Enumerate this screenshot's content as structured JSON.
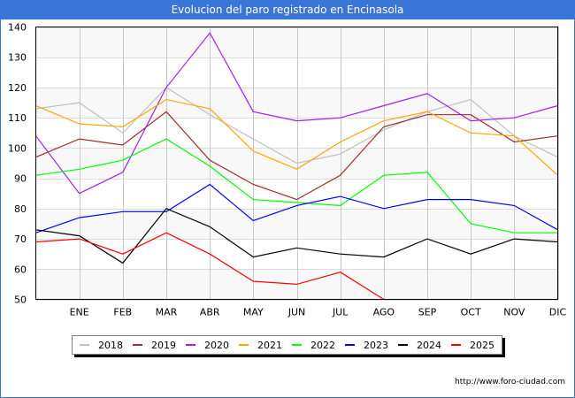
{
  "title": "Evolucion del paro registrado en Encinasola",
  "url": "http://www.foro-ciudad.com",
  "chart_data": {
    "type": "line",
    "title": "Evolucion del paro registrado en Encinasola",
    "xlabel": "",
    "ylabel": "",
    "categories": [
      "",
      "ENE",
      "FEB",
      "MAR",
      "ABR",
      "MAY",
      "JUN",
      "JUL",
      "AGO",
      "SEP",
      "OCT",
      "NOV",
      "DIC"
    ],
    "ylim": [
      50,
      140
    ],
    "yticks": [
      50,
      60,
      70,
      80,
      90,
      100,
      110,
      120,
      130,
      140
    ],
    "grid": true,
    "legend_position": "bottom",
    "series": [
      {
        "name": "2018",
        "color": "#c0c0c0",
        "values": [
          113,
          115,
          105,
          120,
          111,
          103,
          95,
          98,
          106,
          112,
          116,
          104,
          97
        ]
      },
      {
        "name": "2019",
        "color": "#a52a2a",
        "values": [
          97,
          103,
          101,
          112,
          96,
          88,
          83,
          91,
          107,
          111,
          111,
          102,
          104
        ]
      },
      {
        "name": "2020",
        "color": "#a020f0",
        "values": [
          104,
          85,
          92,
          120,
          138,
          112,
          109,
          110,
          114,
          118,
          109,
          110,
          114
        ]
      },
      {
        "name": "2021",
        "color": "#ffa500",
        "values": [
          114,
          108,
          107,
          116,
          113,
          99,
          93,
          102,
          109,
          112,
          105,
          104,
          91
        ]
      },
      {
        "name": "2022",
        "color": "#00ff00",
        "values": [
          91,
          93,
          96,
          103,
          94,
          83,
          82,
          81,
          91,
          92,
          75,
          72,
          72
        ]
      },
      {
        "name": "2023",
        "color": "#0000ff",
        "values": [
          72,
          77,
          79,
          79,
          88,
          76,
          81,
          84,
          80,
          83,
          83,
          81,
          73
        ]
      },
      {
        "name": "2024",
        "color": "#000000",
        "values": [
          73,
          71,
          62,
          80,
          74,
          64,
          67,
          65,
          64,
          70,
          65,
          70,
          69
        ]
      },
      {
        "name": "2025",
        "color": "#ff0000",
        "values": [
          69,
          70,
          65,
          72,
          65,
          56,
          55,
          59,
          50,
          null,
          null,
          null,
          null
        ]
      }
    ]
  }
}
